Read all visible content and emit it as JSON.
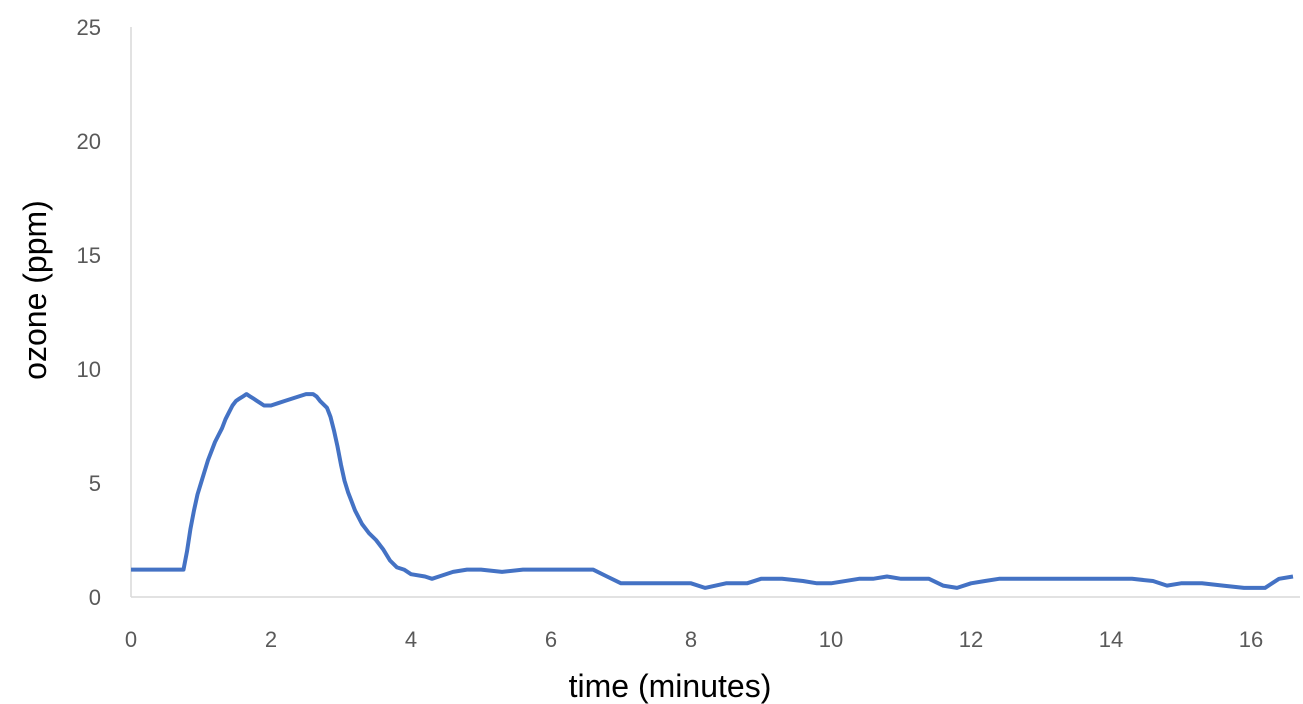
{
  "chart_data": {
    "type": "line",
    "title": "",
    "xlabel": "time (minutes)",
    "ylabel": "ozone (ppm)",
    "xlim": [
      0,
      16.7
    ],
    "ylim": [
      0,
      25
    ],
    "xticks": [
      0,
      2,
      4,
      6,
      8,
      10,
      12,
      14,
      16
    ],
    "yticks": [
      0,
      5,
      10,
      15,
      20,
      25
    ],
    "grid": false,
    "legend": "none",
    "line_color": "#4472C4",
    "series": [
      {
        "x": [
          0,
          0.5,
          0.5,
          0.75,
          0.8,
          0.85,
          0.9,
          0.95,
          1.0,
          1.05,
          1.1,
          1.15,
          1.2,
          1.25,
          1.3,
          1.35,
          1.4,
          1.45,
          1.5,
          1.55,
          1.6,
          1.65,
          1.7,
          1.75,
          1.8,
          1.85,
          1.9,
          2.0,
          2.1,
          2.2,
          2.3,
          2.4,
          2.5,
          2.6,
          2.65,
          2.7,
          2.8,
          2.85,
          2.9,
          2.95,
          3.0,
          3.05,
          3.1,
          3.15,
          3.2,
          3.25,
          3.3,
          3.35,
          3.4,
          3.5,
          3.6,
          3.7,
          3.8,
          3.9,
          4.0,
          4.2,
          4.3,
          4.4,
          4.6,
          4.8,
          5.0,
          5.3,
          5.6,
          6.0,
          6.3,
          6.6,
          6.8,
          7.0,
          7.5,
          8.0,
          8.2,
          8.5,
          8.8,
          9.0,
          9.3,
          9.6,
          9.8,
          10.0,
          10.4,
          10.6,
          10.8,
          11.0,
          11.4,
          11.6,
          11.8,
          12.0,
          12.2,
          12.4,
          12.7,
          13.0,
          13.3,
          13.6,
          14.0,
          14.3,
          14.6,
          14.8,
          15.0,
          15.3,
          15.6,
          15.9,
          16.2,
          16.4,
          16.6
        ],
        "y": [
          1.2,
          1.2,
          1.2,
          1.2,
          2.0,
          3.0,
          3.8,
          4.5,
          5.0,
          5.5,
          6.0,
          6.4,
          6.8,
          7.1,
          7.4,
          7.8,
          8.1,
          8.4,
          8.6,
          8.7,
          8.8,
          8.9,
          8.8,
          8.7,
          8.6,
          8.5,
          8.4,
          8.4,
          8.5,
          8.6,
          8.7,
          8.8,
          8.9,
          8.9,
          8.8,
          8.6,
          8.3,
          7.9,
          7.3,
          6.6,
          5.8,
          5.1,
          4.6,
          4.2,
          3.8,
          3.5,
          3.2,
          3.0,
          2.8,
          2.5,
          2.1,
          1.6,
          1.3,
          1.2,
          1.0,
          0.9,
          0.8,
          0.9,
          1.1,
          1.2,
          1.2,
          1.1,
          1.2,
          1.2,
          1.2,
          1.2,
          0.9,
          0.6,
          0.6,
          0.6,
          0.4,
          0.6,
          0.6,
          0.8,
          0.8,
          0.7,
          0.6,
          0.6,
          0.8,
          0.8,
          0.9,
          0.8,
          0.8,
          0.5,
          0.4,
          0.6,
          0.7,
          0.8,
          0.8,
          0.8,
          0.8,
          0.8,
          0.8,
          0.8,
          0.7,
          0.5,
          0.6,
          0.6,
          0.5,
          0.4,
          0.4,
          0.8,
          0.9
        ]
      }
    ]
  }
}
